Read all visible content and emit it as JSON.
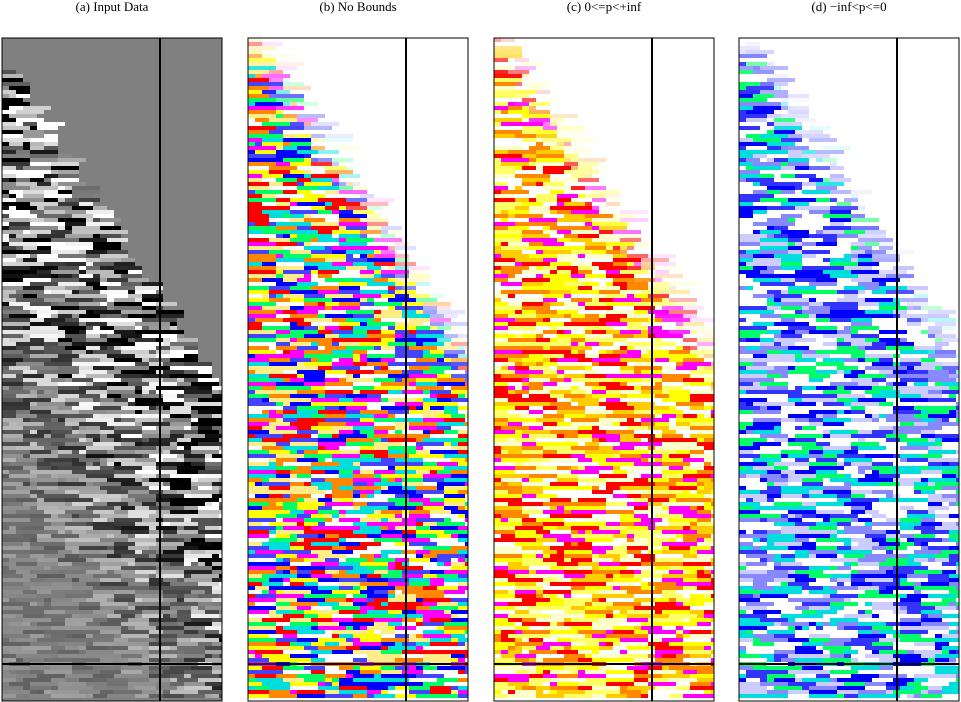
{
  "panels": [
    {
      "title": "(a) Input Data"
    },
    {
      "title": "(b) No Bounds"
    },
    {
      "title": "(c) 0<=p<+inf"
    },
    {
      "title": "(d) −inf<p<=0"
    }
  ]
}
